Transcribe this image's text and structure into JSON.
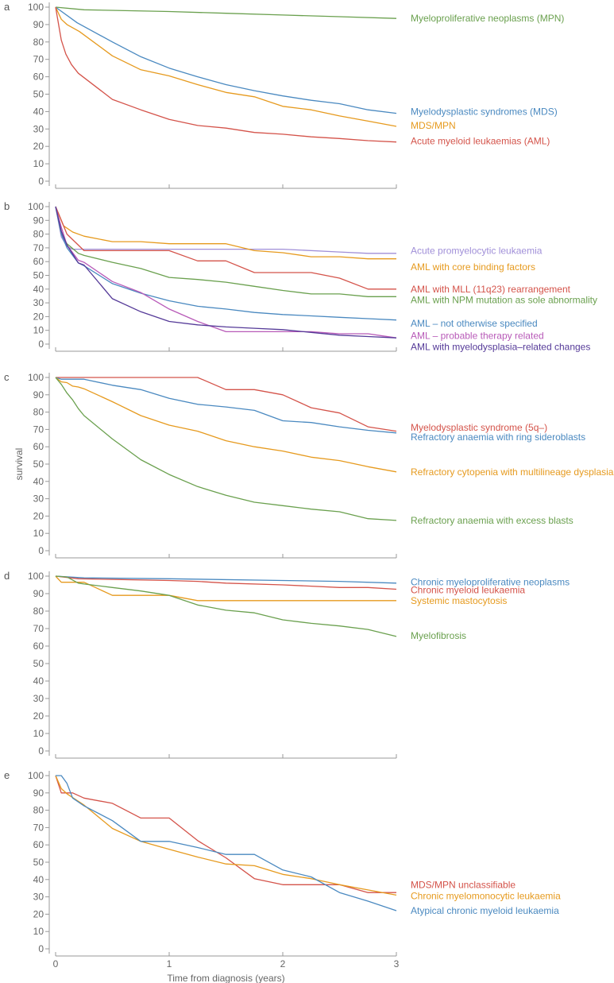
{
  "chart_data": {
    "type": "line",
    "xlabel": "Time from diagnosis (years)",
    "ylabel": "survival",
    "xlim": [
      0,
      3
    ],
    "ylim": [
      0,
      100
    ],
    "x_ticks": [
      "0",
      "1",
      "2",
      "3"
    ],
    "y_ticks": [
      "0",
      "10",
      "20",
      "30",
      "40",
      "50",
      "60",
      "70",
      "80",
      "90",
      "100"
    ],
    "panels": [
      {
        "letter": "a",
        "series": [
          {
            "name": "Myeloproliferative neoplasms (MPN)",
            "color": "#6aa04e",
            "label_y": 93.5,
            "x": [
              0,
              0.25,
              1,
              1.5,
              2,
              2.5,
              3
            ],
            "y": [
              100,
              98.5,
              97.5,
              96.5,
              95.5,
              94.5,
              93.5
            ]
          },
          {
            "name": "Myelodysplastic syndromes (MDS)",
            "color": "#4a89c0",
            "label_y": 40,
            "x": [
              0,
              0.19,
              0.5,
              0.75,
              1,
              1.25,
              1.5,
              1.75,
              2,
              2.25,
              2.5,
              2.75,
              3
            ],
            "y": [
              100,
              91,
              80,
              71.5,
              65,
              60,
              55.5,
              52,
              49,
              46.5,
              44.5,
              41,
              39
            ]
          },
          {
            "name": "MDS/MPN",
            "color": "#e69a1e",
            "label_y": 32,
            "x": [
              0,
              0.05,
              0.1,
              0.21,
              0.5,
              0.75,
              1,
              1.25,
              1.5,
              1.75,
              2,
              2.25,
              2.5,
              2.75,
              3
            ],
            "y": [
              100,
              93,
              90,
              86,
              72,
              64,
              60.5,
              55.5,
              51,
              48.5,
              43,
              41,
              37.5,
              34.5,
              31.5
            ]
          },
          {
            "name": "Acute myeloid leukaemias (AML)",
            "color": "#d4534a",
            "label_y": 23,
            "x": [
              0,
              0.05,
              0.09,
              0.14,
              0.2,
              0.5,
              0.75,
              1,
              1.25,
              1.5,
              1.75,
              2,
              2.25,
              2.5,
              2.75,
              3
            ],
            "y": [
              100,
              81,
              73,
              67,
              62,
              47,
              41,
              35.5,
              32,
              30.5,
              28,
              27,
              25.5,
              24.5,
              23.3,
              22.5
            ]
          }
        ]
      },
      {
        "letter": "b",
        "series": [
          {
            "name": "Acute promyelocytic leukaemia",
            "color": "#a08fd8",
            "label_y": 68,
            "x": [
              0,
              0.05,
              0.1,
              0.15,
              1,
              2,
              2.5,
              2.75,
              3
            ],
            "y": [
              100,
              78,
              71,
              69,
              69,
              69,
              67,
              66,
              66
            ]
          },
          {
            "name": "AML with core binding factors",
            "color": "#e69a1e",
            "label_y": 56,
            "x": [
              0,
              0.07,
              0.15,
              0.25,
              0.5,
              0.75,
              1,
              1.25,
              1.5,
              1.75,
              2,
              2.25,
              2.5,
              2.75,
              3
            ],
            "y": [
              100,
              86,
              81.5,
              78.5,
              74.5,
              74.5,
              73,
              73,
              73,
              68,
              66.5,
              63.5,
              63.5,
              62,
              62
            ]
          },
          {
            "name": "AML with MLL (11q23) rearrangement",
            "color": "#d4534a",
            "label_y": 40,
            "x": [
              0,
              0.05,
              0.1,
              0.25,
              1,
              1.25,
              1.5,
              1.75,
              2,
              2.25,
              2.5,
              2.75,
              3
            ],
            "y": [
              100,
              90,
              80,
              68,
              68,
              60.5,
              60.5,
              52,
              52,
              52,
              48,
              40,
              40
            ]
          },
          {
            "name": "AML with NPM mutation as sole abnormality",
            "color": "#6aa04e",
            "label_y": 32,
            "x": [
              0,
              0.05,
              0.1,
              0.2,
              0.25,
              0.5,
              0.75,
              1,
              1.25,
              1.5,
              1.75,
              2,
              2.25,
              2.5,
              2.75,
              3
            ],
            "y": [
              100,
              80,
              73,
              66,
              64.5,
              59.5,
              55,
              48.5,
              47,
              45,
              42,
              39,
              36.5,
              36.5,
              34.5,
              34.5
            ]
          },
          {
            "name": "AML – not otherwise specified",
            "color": "#4a89c0",
            "label_y": 15,
            "x": [
              0,
              0.05,
              0.1,
              0.2,
              0.25,
              0.5,
              0.75,
              1,
              1.25,
              1.5,
              1.75,
              2,
              2.25,
              2.5,
              2.75,
              3
            ],
            "y": [
              100,
              80,
              70,
              59,
              57,
              44,
              37,
              31.5,
              27.5,
              25.5,
              23,
              21.5,
              20.5,
              19.5,
              18.5,
              17.5
            ]
          },
          {
            "name": "AML – probable therapy related",
            "color": "#b85ab8",
            "label_y": 6,
            "x": [
              0,
              0.05,
              0.1,
              0.2,
              0.25,
              0.5,
              0.75,
              1,
              1.25,
              1.5,
              2,
              2.25,
              2.5,
              2.75,
              3
            ],
            "y": [
              100,
              85,
              72,
              61,
              59.5,
              45.5,
              37.5,
              25.5,
              16.5,
              9,
              9,
              9,
              7.5,
              7.5,
              4.5
            ]
          },
          {
            "name": "AML with myelodysplasia–related changes",
            "color": "#553a98",
            "label_y": -2,
            "x": [
              0,
              0.05,
              0.1,
              0.2,
              0.25,
              0.5,
              0.75,
              1,
              1.25,
              1.5,
              1.75,
              2,
              2.25,
              2.5,
              2.75,
              3
            ],
            "y": [
              100,
              82,
              72,
              59,
              57.5,
              33,
              23.5,
              16.5,
              14,
              12.5,
              11.5,
              10.5,
              8.5,
              6.5,
              5.5,
              4.5
            ]
          }
        ]
      },
      {
        "letter": "c",
        "series": [
          {
            "name": "Myelodysplastic syndrome (5q–)",
            "color": "#d4534a",
            "label_y": 71,
            "x": [
              0,
              1.25,
              1.5,
              1.75,
              2,
              2.25,
              2.5,
              2.75,
              3
            ],
            "y": [
              100,
              100,
              93,
              93,
              90,
              82.5,
              79.5,
              71.5,
              69
            ]
          },
          {
            "name": "Refractory anaemia with ring sideroblasts",
            "color": "#4a89c0",
            "label_y": 65.5,
            "x": [
              0,
              0.05,
              0.25,
              0.5,
              0.75,
              1,
              1.25,
              1.5,
              1.75,
              2,
              2.25,
              2.5,
              2.75,
              3
            ],
            "y": [
              100,
              99,
              99,
              95.5,
              93,
              88,
              84.5,
              83,
              81,
              75,
              74,
              71.5,
              69.5,
              68
            ]
          },
          {
            "name": "Refractory cytopenia with multilineage dysplasia",
            "color": "#e69a1e",
            "label_y": 45.5,
            "x": [
              0,
              0.05,
              0.1,
              0.15,
              0.2,
              0.25,
              0.5,
              0.75,
              1,
              1.25,
              1.5,
              1.75,
              2,
              2.25,
              2.5,
              2.75,
              3
            ],
            "y": [
              100,
              97.5,
              97,
              95,
              94.5,
              93.5,
              86,
              78,
              72.5,
              69,
              63.5,
              60,
              57.5,
              54,
              52,
              48.5,
              45.5
            ]
          },
          {
            "name": "Refractory anaemia with excess blasts",
            "color": "#6aa04e",
            "label_y": 17.5,
            "x": [
              0,
              0.05,
              0.1,
              0.15,
              0.2,
              0.25,
              0.5,
              0.75,
              1,
              1.25,
              1.5,
              1.75,
              2,
              2.25,
              2.5,
              2.75,
              3
            ],
            "y": [
              100,
              96,
              91,
              87,
              82,
              78,
              64.5,
              52.5,
              44,
              37,
              32,
              28,
              26,
              24,
              22.5,
              18.5,
              17.5
            ]
          }
        ]
      },
      {
        "letter": "d",
        "series": [
          {
            "name": "Chronic myeloproliferative neoplasms",
            "color": "#4a89c0",
            "label_y": 96.5,
            "x": [
              0,
              0.25,
              1,
              2,
              2.5,
              3
            ],
            "y": [
              100,
              99,
              98.5,
              97.5,
              97,
              96
            ]
          },
          {
            "name": "Chronic myeloid leukaemia",
            "color": "#d4534a",
            "label_y": 92,
            "x": [
              0,
              0.2,
              1,
              1.25,
              1.5,
              2,
              2.5,
              2.75,
              3
            ],
            "y": [
              100,
              98.5,
              97.5,
              97,
              96,
              95,
              93.5,
              93.5,
              92.5
            ]
          },
          {
            "name": "Systemic mastocytosis",
            "color": "#e69a1e",
            "label_y": 86,
            "x": [
              0,
              0.05,
              0.25,
              0.5,
              1,
              1.25,
              3
            ],
            "y": [
              100,
              96.5,
              96.5,
              89,
              89,
              86,
              86
            ]
          },
          {
            "name": "Myelofibrosis",
            "color": "#6aa04e",
            "label_y": 66,
            "x": [
              0,
              0.1,
              0.2,
              0.25,
              0.5,
              0.75,
              1,
              1.25,
              1.5,
              1.75,
              2,
              2.25,
              2.5,
              2.75,
              3
            ],
            "y": [
              100,
              99.5,
              96,
              95.5,
              93.5,
              91.5,
              89,
              83.5,
              80.5,
              79,
              75,
              73,
              71.5,
              69.5,
              65.5
            ]
          }
        ]
      },
      {
        "letter": "e",
        "series": [
          {
            "name": "MDS/MPN unclassifiable",
            "color": "#d4534a",
            "label_y": 37,
            "x": [
              0,
              0.05,
              0.15,
              0.25,
              0.5,
              0.75,
              1,
              1.25,
              1.5,
              1.75,
              2,
              2.25,
              2.5,
              2.75,
              3
            ],
            "y": [
              100,
              90,
              90,
              87,
              84,
              75.5,
              75.5,
              62.5,
              52.5,
              40.5,
              37,
              37,
              37,
              32.5,
              32.5
            ]
          },
          {
            "name": "Chronic myelomonocytic leukaemia",
            "color": "#e69a1e",
            "label_y": 30.5,
            "x": [
              0,
              0.05,
              0.1,
              0.25,
              0.5,
              0.75,
              1,
              1.25,
              1.5,
              1.75,
              2,
              2.25,
              2.5,
              2.75,
              3
            ],
            "y": [
              100,
              92.5,
              89.5,
              83,
              69.5,
              62,
              57.5,
              53,
              49,
              48,
              43,
              40.5,
              37,
              34,
              31
            ]
          },
          {
            "name": "Atypical chronic myeloid leukaemia",
            "color": "#4a89c0",
            "label_y": 22,
            "x": [
              0,
              0.05,
              0.1,
              0.15,
              0.25,
              0.5,
              0.75,
              1,
              1.25,
              1.5,
              1.75,
              2,
              2.25,
              2.5,
              2.75,
              3
            ],
            "y": [
              100,
              100,
              95.5,
              87,
              82.5,
              74,
              62,
              62,
              58.5,
              54.5,
              54.5,
              45.5,
              41.5,
              32.5,
              27.5,
              22
            ]
          }
        ]
      }
    ]
  }
}
